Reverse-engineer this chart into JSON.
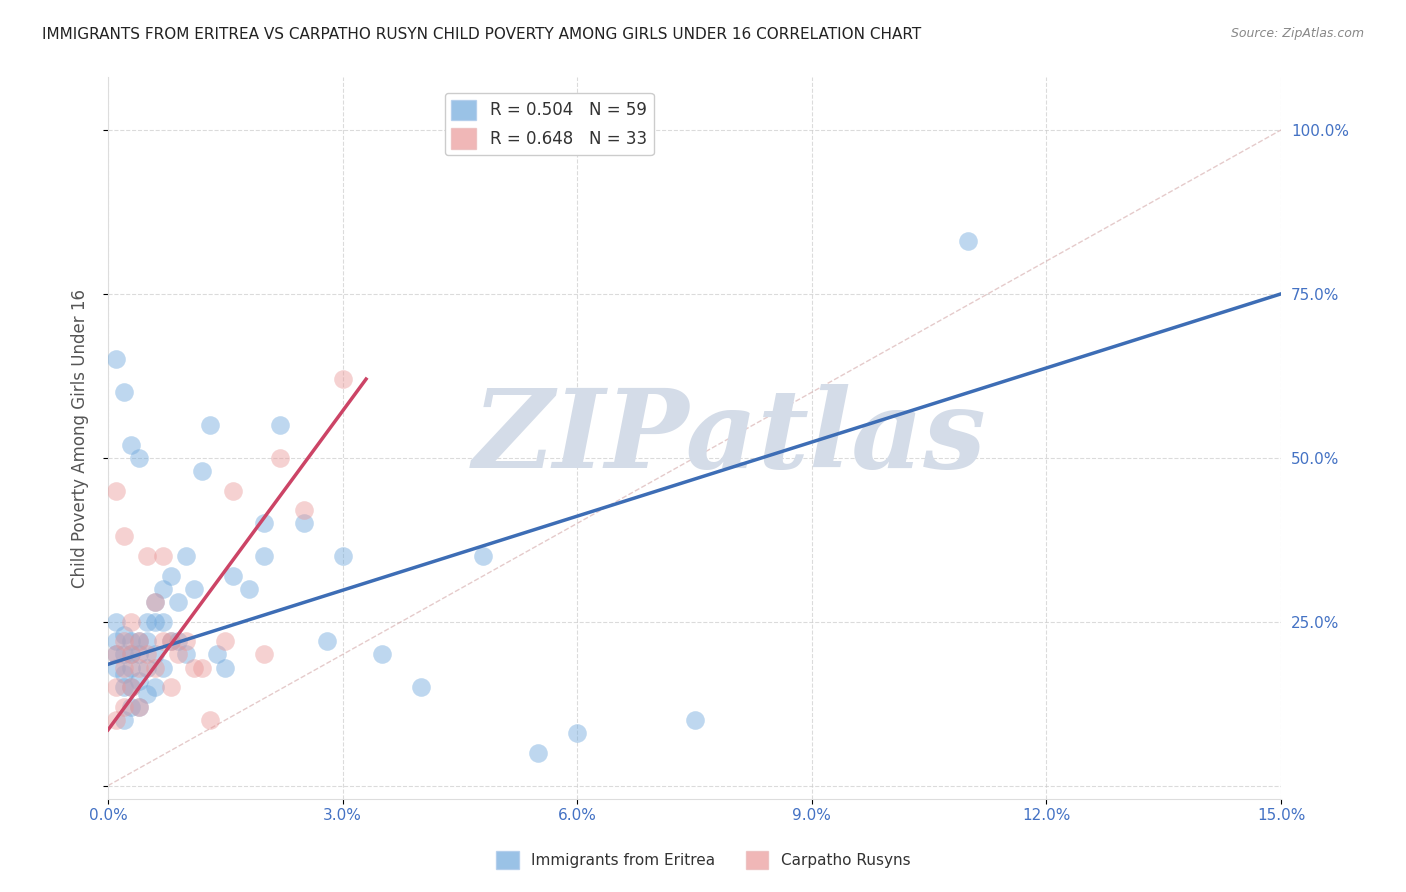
{
  "title": "IMMIGRANTS FROM ERITREA VS CARPATHO RUSYN CHILD POVERTY AMONG GIRLS UNDER 16 CORRELATION CHART",
  "source": "Source: ZipAtlas.com",
  "ylabel_label": "Child Poverty Among Girls Under 16",
  "x_min": 0.0,
  "x_max": 0.15,
  "y_min": -0.02,
  "y_max": 1.08,
  "x_ticks": [
    0.0,
    0.03,
    0.06,
    0.09,
    0.12,
    0.15
  ],
  "x_tick_labels": [
    "0.0%",
    "3.0%",
    "6.0%",
    "9.0%",
    "12.0%",
    "15.0%"
  ],
  "y_ticks": [
    0.0,
    0.25,
    0.5,
    0.75,
    1.0
  ],
  "y_tick_labels_right": [
    "",
    "25.0%",
    "50.0%",
    "75.0%",
    "100.0%"
  ],
  "legend_entries": [
    {
      "label": "R = 0.504   N = 59",
      "color": "#6fa8dc"
    },
    {
      "label": "R = 0.648   N = 33",
      "color": "#ea9999"
    }
  ],
  "bottom_legend": [
    {
      "label": "Immigrants from Eritrea",
      "color": "#6fa8dc"
    },
    {
      "label": "Carpatho Rusyns",
      "color": "#ea9999"
    }
  ],
  "blue_scatter_x": [
    0.001,
    0.001,
    0.001,
    0.001,
    0.002,
    0.002,
    0.002,
    0.002,
    0.002,
    0.003,
    0.003,
    0.003,
    0.003,
    0.003,
    0.004,
    0.004,
    0.004,
    0.004,
    0.005,
    0.005,
    0.005,
    0.005,
    0.006,
    0.006,
    0.006,
    0.006,
    0.007,
    0.007,
    0.007,
    0.008,
    0.008,
    0.009,
    0.009,
    0.01,
    0.01,
    0.011,
    0.012,
    0.013,
    0.014,
    0.015,
    0.016,
    0.018,
    0.02,
    0.022,
    0.025,
    0.028,
    0.03,
    0.035,
    0.04,
    0.048,
    0.055,
    0.06,
    0.075,
    0.11,
    0.001,
    0.002,
    0.003,
    0.004,
    0.02
  ],
  "blue_scatter_y": [
    0.22,
    0.25,
    0.2,
    0.18,
    0.23,
    0.2,
    0.17,
    0.15,
    0.1,
    0.22,
    0.2,
    0.18,
    0.15,
    0.12,
    0.22,
    0.2,
    0.16,
    0.12,
    0.25,
    0.22,
    0.18,
    0.14,
    0.28,
    0.25,
    0.2,
    0.15,
    0.3,
    0.25,
    0.18,
    0.32,
    0.22,
    0.28,
    0.22,
    0.35,
    0.2,
    0.3,
    0.48,
    0.55,
    0.2,
    0.18,
    0.32,
    0.3,
    0.35,
    0.55,
    0.4,
    0.22,
    0.35,
    0.2,
    0.15,
    0.35,
    0.05,
    0.08,
    0.1,
    0.83,
    0.65,
    0.6,
    0.52,
    0.5,
    0.4
  ],
  "pink_scatter_x": [
    0.001,
    0.001,
    0.001,
    0.002,
    0.002,
    0.002,
    0.003,
    0.003,
    0.003,
    0.004,
    0.004,
    0.004,
    0.005,
    0.005,
    0.006,
    0.006,
    0.007,
    0.007,
    0.008,
    0.008,
    0.009,
    0.01,
    0.011,
    0.012,
    0.013,
    0.015,
    0.016,
    0.02,
    0.022,
    0.025,
    0.001,
    0.002,
    0.03
  ],
  "pink_scatter_y": [
    0.2,
    0.15,
    0.1,
    0.22,
    0.18,
    0.12,
    0.25,
    0.2,
    0.15,
    0.22,
    0.18,
    0.12,
    0.35,
    0.2,
    0.28,
    0.18,
    0.35,
    0.22,
    0.22,
    0.15,
    0.2,
    0.22,
    0.18,
    0.18,
    0.1,
    0.22,
    0.45,
    0.2,
    0.5,
    0.42,
    0.45,
    0.38,
    0.62
  ],
  "blue_line_x": [
    0.0,
    0.15
  ],
  "blue_line_y": [
    0.185,
    0.75
  ],
  "pink_line_x": [
    0.0,
    0.033
  ],
  "pink_line_y": [
    0.085,
    0.62
  ],
  "diag_line_x": [
    0.0,
    0.15
  ],
  "diag_line_y": [
    0.0,
    1.0
  ],
  "watermark": "ZIPatlas",
  "watermark_color": "#d4dce8",
  "bg_color": "#ffffff",
  "grid_color": "#cccccc",
  "title_color": "#222222",
  "axis_tick_color": "#4472c4",
  "ylabel_color": "#555555",
  "source_color": "#888888"
}
